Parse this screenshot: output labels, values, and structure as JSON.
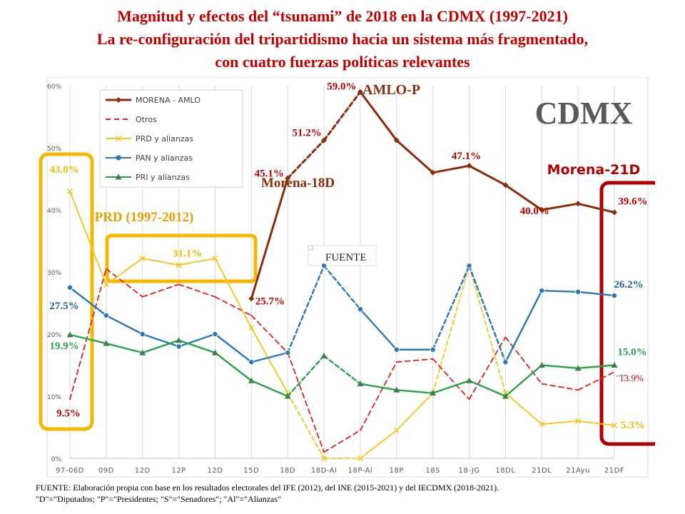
{
  "header": {
    "line1": "Magnitud y efectos del “tsunami” de 2018 en la CDMX (1997-2021)",
    "line2": "La re-configuración del tripartidismo hacia un sistema más fragmentado,",
    "line3": "con cuatro fuerzas políticas relevantes"
  },
  "footer": {
    "line1": "FUENTE: Elaboración propia con base en los resultados electorales del IFE (2012), del INE (2015-2021) y del IECDMX (2018-2021).",
    "line2": "\"D\"=\"Diputados; \"P\"=\"Presidentes; \"S\"=\"Senadores\"; \"Al\"=\"Alianzas\""
  },
  "colors": {
    "morena": "#8b2d0c",
    "otros": "#e02020",
    "prd": "#f5c518",
    "pan": "#2a78b8",
    "pri": "#2aa24a",
    "highlight_yellow": "#f5b800",
    "highlight_red": "#b00000"
  },
  "chart_data": {
    "type": "line",
    "categories": [
      "97-06D",
      "09D",
      "12D",
      "12P",
      "12D",
      "15D",
      "18D",
      "18D-Al",
      "18P-Al",
      "18P",
      "18S",
      "18-JG",
      "18DL",
      "21DL",
      "21Ayu",
      "21DF"
    ],
    "ylim": [
      0,
      60
    ],
    "yticks": [
      "0%",
      "10%",
      "20%",
      "30%",
      "40%",
      "50%",
      "60%"
    ],
    "grid": "vertical",
    "legend_position": "top-left",
    "watermark": "CDMX",
    "inset_label": "FUENTE",
    "series": [
      {
        "name": "MORENA - AMLO",
        "key": "morena",
        "values": [
          null,
          null,
          null,
          null,
          null,
          25.7,
          45.1,
          51.2,
          59.0,
          51.2,
          46.0,
          47.1,
          44.0,
          40.0,
          41.0,
          39.6
        ],
        "dashed_segments": [
          [
            6,
            8
          ]
        ]
      },
      {
        "name": "Otros",
        "key": "otros",
        "values": [
          9.5,
          30.5,
          26.0,
          28.0,
          26.0,
          23.0,
          17.0,
          1.0,
          4.5,
          15.5,
          16.0,
          9.5,
          19.5,
          12.0,
          11.0,
          13.9
        ],
        "dashed": true
      },
      {
        "name": "PRD y alianzas",
        "key": "prd",
        "values": [
          43.0,
          28.0,
          32.2,
          31.1,
          32.2,
          21.0,
          10.5,
          0.0,
          0.0,
          4.5,
          10.5,
          31.0,
          10.5,
          5.5,
          6.0,
          5.3
        ],
        "dashed_segments": [
          [
            6,
            8
          ],
          [
            10,
            12
          ]
        ]
      },
      {
        "name": "PAN y alianzas",
        "key": "pan",
        "values": [
          27.5,
          23.0,
          20.0,
          18.0,
          20.0,
          15.5,
          17.0,
          31.0,
          24.0,
          17.5,
          17.5,
          31.0,
          15.5,
          27.0,
          26.8,
          26.2
        ],
        "dashed_segments": [
          [
            6,
            8
          ],
          [
            10,
            12
          ]
        ]
      },
      {
        "name": "PRI y alianzas",
        "key": "pri",
        "values": [
          19.9,
          18.5,
          17.0,
          19.0,
          17.0,
          12.5,
          10.0,
          16.5,
          12.0,
          11.0,
          10.5,
          12.5,
          10.0,
          15.0,
          14.5,
          15.0
        ],
        "dashed_segments": [
          [
            6,
            8
          ]
        ]
      }
    ],
    "data_labels": [
      {
        "text": "43.0%",
        "series": "prd",
        "index": 0,
        "color": "#f5b800"
      },
      {
        "text": "27.5%",
        "series": "pan",
        "index": 0,
        "color": "#1f5fa0"
      },
      {
        "text": "19.9%",
        "series": "pri",
        "index": 0,
        "color": "#2aa24a"
      },
      {
        "text": "9.5%",
        "series": "otros",
        "index": 0,
        "color": "#c00000"
      },
      {
        "text": "31.1%",
        "series": "prd",
        "index": 3,
        "color": "#f5b800"
      },
      {
        "text": "25.7%",
        "series": "morena",
        "index": 5,
        "color": "#c00000"
      },
      {
        "text": "45.1%",
        "series": "morena",
        "index": 6,
        "color": "#c00000"
      },
      {
        "text": "51.2%",
        "series": "morena",
        "index": 7,
        "color": "#c00000"
      },
      {
        "text": "59.0%",
        "series": "morena",
        "index": 8,
        "color": "#c00000"
      },
      {
        "text": "47.1%",
        "series": "morena",
        "index": 11,
        "color": "#c00000"
      },
      {
        "text": "40.0%",
        "series": "morena",
        "index": 13,
        "color": "#c00000"
      },
      {
        "text": "39.6%",
        "series": "morena",
        "index": 15,
        "color": "#c00000"
      },
      {
        "text": "26.2%",
        "series": "pan",
        "index": 15,
        "color": "#1f5fa0"
      },
      {
        "text": "15.0%",
        "series": "pri",
        "index": 15,
        "color": "#2aa24a"
      },
      {
        "text": "13.9%",
        "series": "otros",
        "index": 15,
        "color": "#c00000"
      },
      {
        "text": "5.3%",
        "series": "prd",
        "index": 15,
        "color": "#f5b800"
      }
    ],
    "annotations": [
      {
        "text": "AMLO-P",
        "color": "#8b2d0c",
        "near_index": 8
      },
      {
        "text": "Morena-18D",
        "color": "#8b2d0c",
        "near_index": 6
      },
      {
        "text": "Morena-21D",
        "color": "#b00000",
        "near_index": 15
      },
      {
        "text": "PRD (1997-2012)",
        "color": "#e8a000",
        "near_index": 2
      }
    ]
  }
}
